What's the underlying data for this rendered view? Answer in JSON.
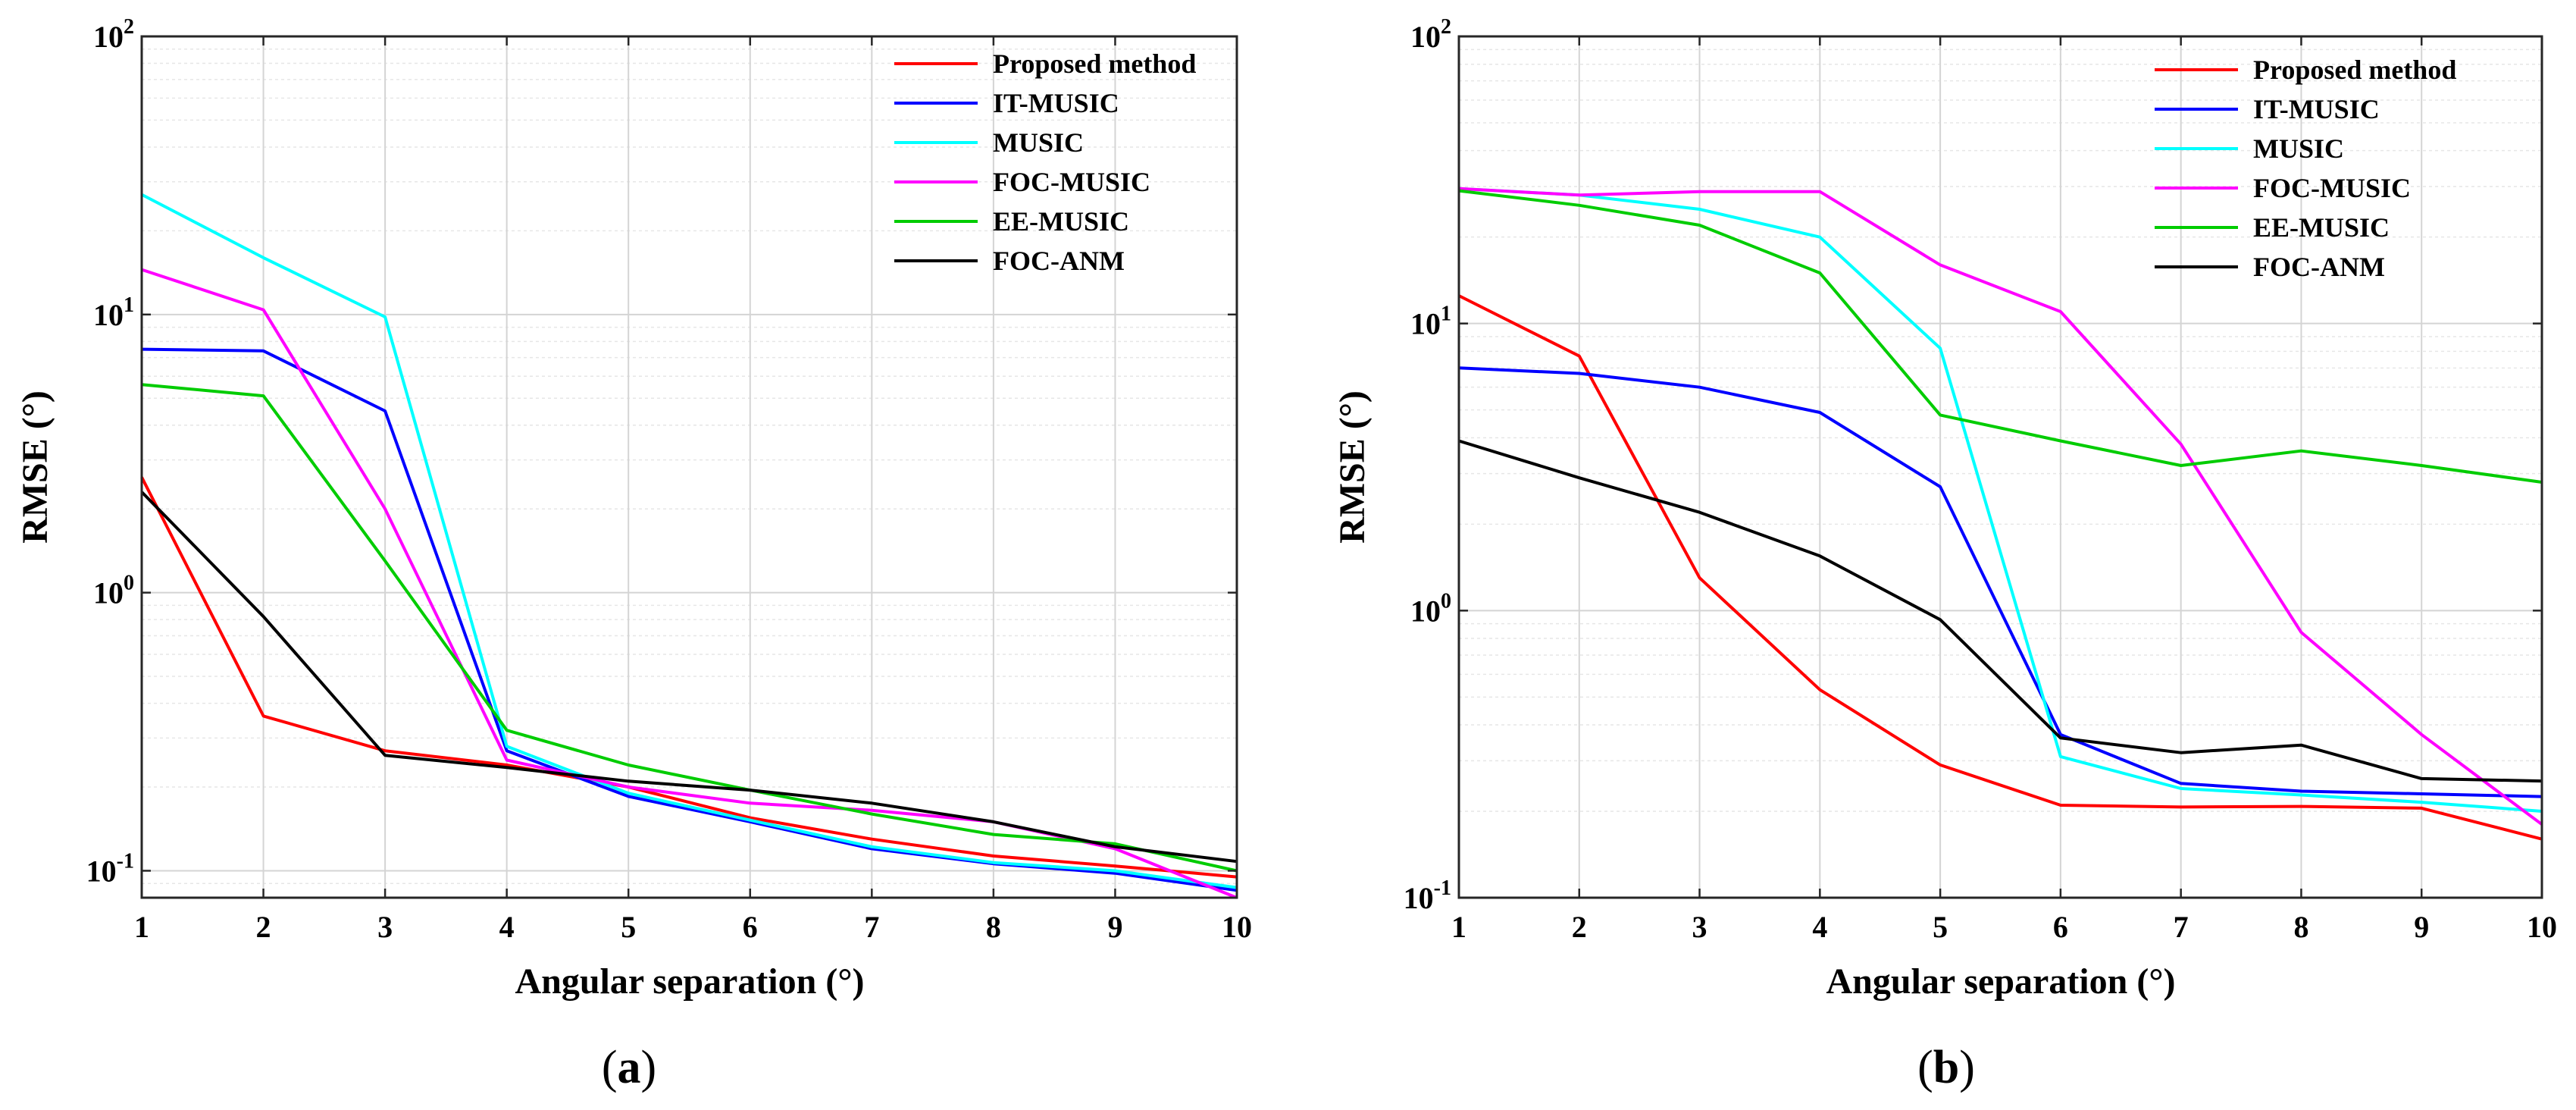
{
  "chart_data": [
    {
      "type": "line",
      "panel": "a",
      "caption_open": "(",
      "caption_letter": "a",
      "caption_close": ")",
      "xlabel": "Angular separation (°)",
      "ylabel": "RMSE (°)",
      "xlim": [
        1,
        10
      ],
      "ylim": [
        0.08,
        100
      ],
      "yscale": "log",
      "grid": true,
      "legend_position": "top-right",
      "x": [
        1,
        2,
        3,
        4,
        5,
        6,
        7,
        8,
        9,
        10
      ],
      "x_ticks": [
        "1",
        "2",
        "3",
        "4",
        "5",
        "6",
        "7",
        "8",
        "9",
        "10"
      ],
      "y_ticks": [
        {
          "value": 0.1,
          "base": "10",
          "exp": "-1"
        },
        {
          "value": 1,
          "base": "10",
          "exp": "0"
        },
        {
          "value": 10,
          "base": "10",
          "exp": "1"
        },
        {
          "value": 100,
          "base": "10",
          "exp": "2"
        }
      ],
      "series": [
        {
          "name": "Proposed method",
          "color": "#ff0000",
          "values": [
            2.6,
            0.36,
            0.27,
            0.24,
            0.2,
            0.155,
            0.13,
            0.113,
            0.104,
            0.095
          ]
        },
        {
          "name": "IT-MUSIC",
          "color": "#0000ff",
          "values": [
            7.5,
            7.4,
            4.5,
            0.27,
            0.185,
            0.15,
            0.12,
            0.106,
            0.098,
            0.085
          ]
        },
        {
          "name": "MUSIC",
          "color": "#00ffff",
          "values": [
            27,
            16,
            9.8,
            0.28,
            0.19,
            0.152,
            0.122,
            0.107,
            0.1,
            0.087
          ]
        },
        {
          "name": "FOC-MUSIC",
          "color": "#ff00ff",
          "values": [
            14.5,
            10.4,
            2.0,
            0.25,
            0.2,
            0.175,
            0.165,
            0.15,
            0.12,
            0.08
          ]
        },
        {
          "name": "EE-MUSIC",
          "color": "#00cc00",
          "values": [
            5.6,
            5.1,
            1.3,
            0.32,
            0.24,
            0.195,
            0.16,
            0.135,
            0.125,
            0.1
          ]
        },
        {
          "name": "FOC-ANM",
          "color": "#000000",
          "values": [
            2.3,
            0.82,
            0.26,
            0.235,
            0.21,
            0.195,
            0.175,
            0.15,
            0.122,
            0.108
          ]
        }
      ]
    },
    {
      "type": "line",
      "panel": "b",
      "caption_open": "(",
      "caption_letter": "b",
      "caption_close": ")",
      "xlabel": "Angular separation (°)",
      "ylabel": "RMSE (°)",
      "xlim": [
        1,
        10
      ],
      "ylim": [
        0.1,
        100
      ],
      "yscale": "log",
      "grid": true,
      "legend_position": "top-right",
      "x": [
        1,
        2,
        3,
        4,
        5,
        6,
        7,
        8,
        9,
        10
      ],
      "x_ticks": [
        "1",
        "2",
        "3",
        "4",
        "5",
        "6",
        "7",
        "8",
        "9",
        "10"
      ],
      "y_ticks": [
        {
          "value": 0.1,
          "base": "10",
          "exp": "-1"
        },
        {
          "value": 1,
          "base": "10",
          "exp": "0"
        },
        {
          "value": 10,
          "base": "10",
          "exp": "1"
        },
        {
          "value": 100,
          "base": "10",
          "exp": "2"
        }
      ],
      "series": [
        {
          "name": "Proposed method",
          "color": "#ff0000",
          "values": [
            12.5,
            7.7,
            1.3,
            0.53,
            0.29,
            0.21,
            0.207,
            0.208,
            0.205,
            0.16
          ]
        },
        {
          "name": "IT-MUSIC",
          "color": "#0000ff",
          "values": [
            7.0,
            6.7,
            6.0,
            4.9,
            2.7,
            0.37,
            0.25,
            0.235,
            0.23,
            0.225
          ]
        },
        {
          "name": "MUSIC",
          "color": "#00ffff",
          "values": [
            29.5,
            28.0,
            25.0,
            20.0,
            8.2,
            0.31,
            0.24,
            0.228,
            0.215,
            0.2
          ]
        },
        {
          "name": "FOC-MUSIC",
          "color": "#ff00ff",
          "values": [
            29.5,
            28.0,
            28.8,
            28.8,
            16.0,
            11.0,
            3.8,
            0.84,
            0.37,
            0.18
          ]
        },
        {
          "name": "EE-MUSIC",
          "color": "#00cc00",
          "values": [
            29.0,
            25.8,
            22.0,
            15.0,
            4.8,
            3.9,
            3.2,
            3.6,
            3.2,
            2.8
          ]
        },
        {
          "name": "FOC-ANM",
          "color": "#000000",
          "values": [
            3.9,
            2.9,
            2.2,
            1.55,
            0.93,
            0.36,
            0.32,
            0.34,
            0.26,
            0.255
          ]
        }
      ]
    }
  ]
}
